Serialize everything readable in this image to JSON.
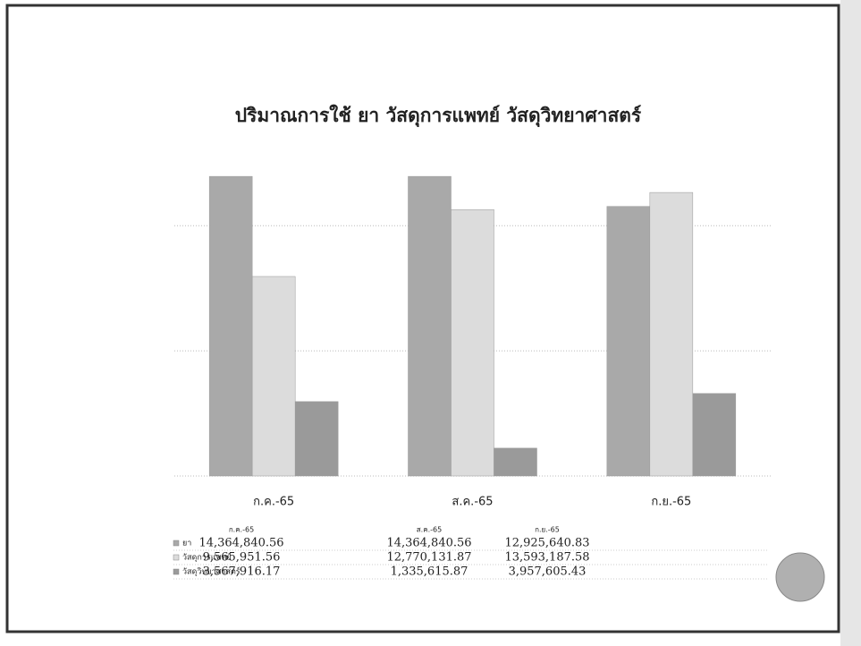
{
  "chart_data": {
    "type": "bar",
    "title": "ปริมาณการใช้ ยา วัสดุการแพทย์ วัสดุวิทยาศาสตร์",
    "categories": [
      "ก.ค.-65",
      "ส.ค.-65",
      "ก.ย.-65"
    ],
    "series": [
      {
        "name": "ยา",
        "color": "#a9a9a9",
        "values": [
          14364840.56,
          14364840.56,
          12925640.83
        ],
        "value_labels": [
          "14,364,840.56",
          "14,364,840.56",
          "12,925,640.83"
        ]
      },
      {
        "name": "วัสดุการแพทย์",
        "color": "#dcdcdc",
        "values": [
          9565951.56,
          12770131.87,
          13593187.58
        ],
        "value_labels": [
          "9,565,951.56",
          "12,770,131.87",
          "13,593,187.58"
        ]
      },
      {
        "name": "วัสดุวิทยาศาสตร์",
        "color": "#9a9a9a",
        "values": [
          3567916.17,
          1335615.87,
          3957605.43
        ],
        "value_labels": [
          "3,567,916.17",
          "1,335,615.87",
          "3,957,605.43"
        ]
      }
    ],
    "ylim": [
      0,
      16000000
    ],
    "yticks": [
      0,
      6000000,
      12000000
    ],
    "grid": true
  }
}
